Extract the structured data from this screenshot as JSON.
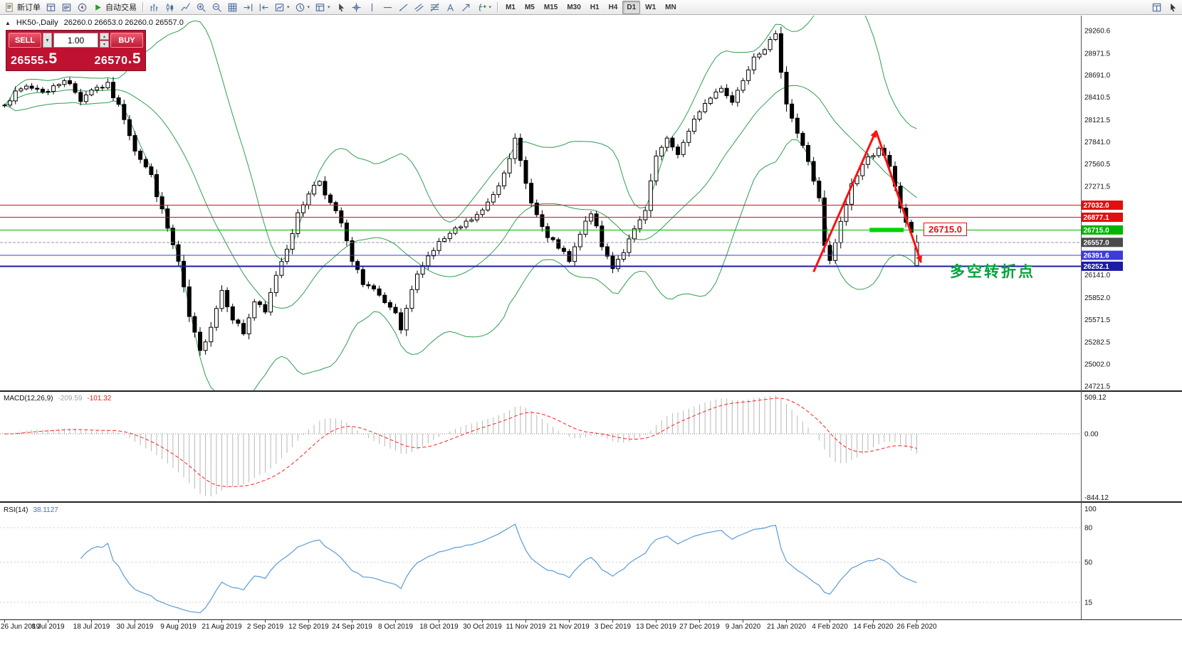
{
  "toolbar": {
    "new_order": {
      "label": "新订单",
      "icon": "doc"
    },
    "autotrading": {
      "label": "自动交易",
      "icon": "play"
    },
    "icon_buttons_left": [
      {
        "name": "charts-grid-icon-button",
        "icon": "data"
      },
      {
        "name": "market-watch-icon-button",
        "icon": "list"
      },
      {
        "name": "navigator-icon-button",
        "icon": "nav"
      }
    ],
    "icon_buttons_chart": [
      {
        "name": "bar-chart-button",
        "icon": "bars"
      },
      {
        "name": "candlestick-chart-button",
        "icon": "candles"
      },
      {
        "name": "line-chart-button",
        "icon": "line"
      },
      {
        "name": "zoom-in-button",
        "icon": "zoomin"
      },
      {
        "name": "zoom-out-button",
        "icon": "zoomout"
      },
      {
        "name": "tile-windows-button",
        "icon": "grid"
      },
      {
        "name": "auto-scroll-button",
        "icon": "scroll"
      },
      {
        "name": "chart-shift-button",
        "icon": "shift"
      },
      {
        "name": "new-chart-button",
        "icon": "chartdd",
        "dd": true
      },
      {
        "name": "periods-button",
        "icon": "clock",
        "dd": true
      },
      {
        "name": "templates-button",
        "icon": "template",
        "dd": true
      },
      {
        "name": "cursor-tool-button",
        "icon": "cursor"
      },
      {
        "name": "crosshair-tool-button",
        "icon": "cross"
      },
      {
        "name": "vertical-line-tool-button",
        "icon": "vline"
      },
      {
        "name": "horizontal-line-tool-button",
        "icon": "hline"
      },
      {
        "name": "trendline-tool-button",
        "icon": "trend"
      },
      {
        "name": "channel-tool-button",
        "icon": "channel"
      },
      {
        "name": "fibonacci-tool-button",
        "icon": "fibo"
      },
      {
        "name": "text-tool-button",
        "icon": "text"
      },
      {
        "name": "arrows-tool-button",
        "icon": "arrow"
      },
      {
        "name": "indicators-button",
        "icon": "func",
        "dd": true
      }
    ],
    "timeframes": [
      "M1",
      "M5",
      "M15",
      "M30",
      "H1",
      "H4",
      "D1",
      "W1",
      "MN"
    ],
    "active_timeframe": "D1",
    "icon_buttons_right": [
      {
        "name": "chart-windows-button",
        "icon": "win"
      },
      {
        "name": "pointer-button",
        "icon": "pointer"
      }
    ]
  },
  "chart_header": {
    "symbol_title": "HK50-,Daily",
    "ohlc": "26260.0 26653.0 26260.0 26557.0"
  },
  "trade_panel": {
    "sell_label": "SELL",
    "buy_label": "BUY",
    "volume": "1.00",
    "sell_price_int": "26555",
    "sell_price_frac": ".5",
    "buy_price_int": "26570",
    "buy_price_frac": ".5"
  },
  "price_axis": {
    "labels": [
      {
        "text": "29260.6",
        "price": 29260.6
      },
      {
        "text": "28971.5",
        "price": 28971.5
      },
      {
        "text": "28691.0",
        "price": 28691.0
      },
      {
        "text": "28410.5",
        "price": 28410.5
      },
      {
        "text": "28121.5",
        "price": 28121.5
      },
      {
        "text": "27841.0",
        "price": 27841.0
      },
      {
        "text": "27560.5",
        "price": 27560.5
      },
      {
        "text": "27271.5",
        "price": 27271.5
      },
      {
        "text": "26141.0",
        "price": 26141.0
      },
      {
        "text": "25852.0",
        "price": 25852.0
      },
      {
        "text": "25571.5",
        "price": 25571.5
      },
      {
        "text": "25282.5",
        "price": 25282.5
      },
      {
        "text": "25002.0",
        "price": 25002.0
      },
      {
        "text": "24721.5",
        "price": 24721.5
      }
    ],
    "tags": [
      {
        "text": "27032.0",
        "price": 27032.0,
        "bg": "#e01010",
        "line": "#e01010",
        "dash": false,
        "w": 1
      },
      {
        "text": "26877.1",
        "price": 26877.1,
        "bg": "#e01010",
        "line": "#e01010",
        "dash": false,
        "w": 1
      },
      {
        "text": "26715.0",
        "price": 26715.0,
        "bg": "#00b400",
        "line": "#00b400",
        "dash": false,
        "w": 1
      },
      {
        "text": "26557.0",
        "price": 26557.0,
        "bg": "#4a4a4a",
        "line": "#9a9a9a",
        "dash": true,
        "w": 1
      },
      {
        "text": "26391.6",
        "price": 26391.6,
        "bg": "#3c3cd8",
        "line": "#3c3cd8",
        "dash": false,
        "w": 1
      },
      {
        "text": "26252.1",
        "price": 26252.1,
        "bg": "#1c1ca4",
        "line": "#1c1ca4",
        "dash": false,
        "w": 2
      }
    ]
  },
  "macd_panel": {
    "name": "MACD(12,26,9)",
    "value_main": "-209.59",
    "value_signal": "-101.32",
    "axis_top": "509.12",
    "axis_zero": "0.00",
    "axis_bottom": "-844.12"
  },
  "rsi_panel": {
    "name": "RSI(14)",
    "value": "38.1127",
    "axis": [
      {
        "text": "100",
        "v": 100
      },
      {
        "text": "80",
        "v": 80
      },
      {
        "text": "50",
        "v": 50
      },
      {
        "text": "15",
        "v": 15
      }
    ],
    "levels": [
      80,
      50,
      15
    ]
  },
  "time_axis": [
    {
      "t": "26 Jun 2019",
      "i": 0
    },
    {
      "t": "8 Jul 2019",
      "i": 8
    },
    {
      "t": "18 Jul 2019",
      "i": 16
    },
    {
      "t": "30 Jul 2019",
      "i": 24
    },
    {
      "t": "9 Aug 2019",
      "i": 32
    },
    {
      "t": "21 Aug 2019",
      "i": 40
    },
    {
      "t": "2 Sep 2019",
      "i": 48
    },
    {
      "t": "12 Sep 2019",
      "i": 56
    },
    {
      "t": "24 Sep 2019",
      "i": 64
    },
    {
      "t": "8 Oct 2019",
      "i": 72
    },
    {
      "t": "18 Oct 2019",
      "i": 80
    },
    {
      "t": "30 Oct 2019",
      "i": 88
    },
    {
      "t": "11 Nov 2019",
      "i": 96
    },
    {
      "t": "21 Nov 2019",
      "i": 104
    },
    {
      "t": "3 Dec 2019",
      "i": 112
    },
    {
      "t": "13 Dec 2019",
      "i": 120
    },
    {
      "t": "27 Dec 2019",
      "i": 128
    },
    {
      "t": "9 Jan 2020",
      "i": 136
    },
    {
      "t": "21 Jan 2020",
      "i": 144
    },
    {
      "t": "4 Feb 2020",
      "i": 152
    },
    {
      "t": "14 Feb 2020",
      "i": 160
    },
    {
      "t": "26 Feb 2020",
      "i": 168
    }
  ],
  "annotations": {
    "turning_point_text": "多空转折点",
    "price_flag_text": "26715.0",
    "flag_anchor": {
      "i": 169.3,
      "price": 26715.0
    },
    "arrow_points": [
      [
        149,
        26180
      ],
      [
        160.5,
        27980
      ],
      [
        168.8,
        26300
      ]
    ],
    "segment": {
      "i1": 159.3,
      "i2": 165.6,
      "price": 26715.0
    },
    "colors": {
      "arrow": "#ff1010",
      "segment": "#00d300",
      "text": "#00a33a",
      "flag": "#e01010"
    }
  },
  "chart_data": {
    "type": "candlestick",
    "symbol": "HK50-",
    "timeframe": "Daily",
    "current_bar_ohlc": [
      26260.0,
      26653.0,
      26260.0,
      26557.0
    ],
    "bars": 169,
    "first_open": 28300,
    "last_bar": [
      26260.0,
      26653.0,
      26260.0,
      26557.0
    ],
    "seed": 7,
    "noise": 42,
    "wick": 36,
    "waypoints": [
      [
        0,
        28350
      ],
      [
        4,
        28550
      ],
      [
        8,
        28480
      ],
      [
        11,
        28650
      ],
      [
        14,
        28380
      ],
      [
        16,
        28520
      ],
      [
        19,
        28560
      ],
      [
        22,
        28150
      ],
      [
        24,
        27750
      ],
      [
        27,
        27400
      ],
      [
        29,
        26950
      ],
      [
        32,
        26300
      ],
      [
        34,
        25600
      ],
      [
        36,
        25150
      ],
      [
        38,
        25500
      ],
      [
        40,
        25950
      ],
      [
        42,
        25600
      ],
      [
        44,
        25400
      ],
      [
        46,
        25800
      ],
      [
        48,
        25650
      ],
      [
        50,
        26150
      ],
      [
        52,
        26500
      ],
      [
        54,
        26900
      ],
      [
        56,
        27200
      ],
      [
        58,
        27350
      ],
      [
        60,
        27050
      ],
      [
        62,
        26800
      ],
      [
        64,
        26300
      ],
      [
        66,
        26050
      ],
      [
        68,
        25950
      ],
      [
        70,
        25750
      ],
      [
        72,
        25650
      ],
      [
        73,
        25400
      ],
      [
        75,
        25950
      ],
      [
        77,
        26300
      ],
      [
        80,
        26550
      ],
      [
        83,
        26700
      ],
      [
        86,
        26850
      ],
      [
        88,
        26950
      ],
      [
        91,
        27300
      ],
      [
        94,
        27850
      ],
      [
        96,
        27300
      ],
      [
        98,
        26900
      ],
      [
        100,
        26600
      ],
      [
        102,
        26500
      ],
      [
        104,
        26300
      ],
      [
        106,
        26650
      ],
      [
        108,
        26950
      ],
      [
        110,
        26500
      ],
      [
        112,
        26250
      ],
      [
        114,
        26450
      ],
      [
        116,
        26700
      ],
      [
        118,
        26950
      ],
      [
        120,
        27650
      ],
      [
        122,
        27850
      ],
      [
        124,
        27700
      ],
      [
        126,
        27950
      ],
      [
        128,
        28250
      ],
      [
        130,
        28400
      ],
      [
        132,
        28550
      ],
      [
        134,
        28350
      ],
      [
        136,
        28650
      ],
      [
        138,
        28950
      ],
      [
        140,
        29050
      ],
      [
        142,
        29180
      ],
      [
        144,
        28350
      ],
      [
        146,
        27950
      ],
      [
        148,
        27600
      ],
      [
        150,
        27100
      ],
      [
        151,
        26500
      ],
      [
        152,
        26300
      ],
      [
        154,
        26800
      ],
      [
        156,
        27300
      ],
      [
        158,
        27550
      ],
      [
        160,
        27700
      ],
      [
        161,
        27780
      ],
      [
        163,
        27500
      ],
      [
        165,
        27000
      ],
      [
        167,
        26650
      ],
      [
        168,
        26557
      ]
    ],
    "indicators": {
      "bollinger": {
        "period": 20,
        "deviation": 2
      },
      "macd": {
        "fast": 12,
        "slow": 26,
        "signal": 9
      },
      "rsi": {
        "period": 14
      }
    },
    "colors": {
      "bull": "#ffffff",
      "bear": "#000000",
      "outline": "#000000",
      "band": "#2f9e4f",
      "macd_hist": "#b8b8b8",
      "macd_signal": "#ff2020",
      "rsi": "#5b9bd5"
    }
  }
}
